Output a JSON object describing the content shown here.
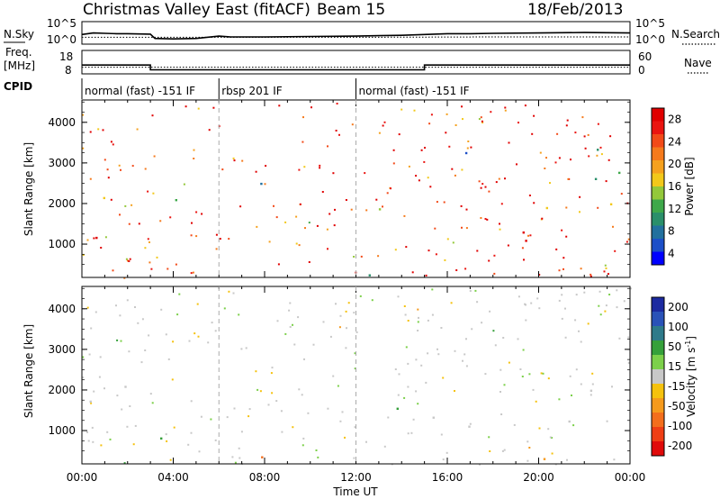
{
  "header": {
    "title": "Christmas Valley East (fitACF)",
    "beam": "Beam 15",
    "date": "18/Feb/2013"
  },
  "top_panel": {
    "left_label": "N.Sky",
    "left_ticks": [
      "10^5",
      "10^0"
    ],
    "right_ticks": [
      "10^5",
      "10^0"
    ],
    "right_label": "N.Search"
  },
  "freq_panel": {
    "left_label_1": "Freq.",
    "left_label_2": "[MHz]",
    "left_ticks": [
      18,
      8
    ],
    "right_ticks": [
      60,
      0
    ],
    "right_label": "Nave"
  },
  "cpid": {
    "label": "CPID",
    "segments": [
      {
        "label": "normal (fast) -151 IF",
        "start_hour": 0,
        "end_hour": 6
      },
      {
        "label": "rbsp 201 IF",
        "start_hour": 6,
        "end_hour": 12
      },
      {
        "label": "normal (fast) -151 IF",
        "start_hour": 12,
        "end_hour": 24
      }
    ]
  },
  "xaxis": {
    "label": "Time UT",
    "ticks": [
      "00:00",
      "04:00",
      "08:00",
      "12:00",
      "16:00",
      "20:00",
      "00:00"
    ]
  },
  "power_colorbar": {
    "label": "Power [dB]",
    "ticks": [
      4,
      8,
      12,
      16,
      20,
      24,
      28
    ],
    "colors": [
      "#0000ff",
      "#1c4fc8",
      "#22709e",
      "#2a8f6a",
      "#3ea84a",
      "#93c83a",
      "#f2c81a",
      "#f5a11e",
      "#f57a1c",
      "#f24a18",
      "#ea1410",
      "#e00000"
    ]
  },
  "velocity_colorbar": {
    "label": "Velocity [m s^-1]",
    "ticks": [
      200,
      100,
      50,
      15,
      -15,
      -50,
      -100,
      -200
    ],
    "colors": [
      "#1c2aa0",
      "#2a52b8",
      "#2e7a8a",
      "#35a03a",
      "#7cd04a",
      "#c8c8c8",
      "#f5c20e",
      "#f59a1c",
      "#f36e1c",
      "#ef3e14",
      "#e00a0a"
    ]
  },
  "chart_data": [
    {
      "type": "line",
      "title": "N.Sky / N.Search",
      "xlabel": "",
      "ylabel": "N.Sky",
      "xlim": [
        0,
        24
      ],
      "series": [
        {
          "name": "N.Sky",
          "x": [
            0,
            0.5,
            1,
            1.5,
            2,
            3,
            3.2,
            4,
            5,
            6,
            6.5,
            8,
            10,
            12,
            13,
            14,
            15,
            16,
            17,
            18,
            20,
            22,
            24
          ],
          "y": [
            2.2,
            2.6,
            2.5,
            2.4,
            2.4,
            2.3,
            1.2,
            1.1,
            1.2,
            1.8,
            1.6,
            1.6,
            1.7,
            1.8,
            1.9,
            2.0,
            2.2,
            2.4,
            2.4,
            2.5,
            2.6,
            2.7,
            2.6
          ]
        },
        {
          "name": "N.Search",
          "x": [
            0,
            6,
            12,
            18,
            24
          ],
          "y": [
            1.5,
            1.5,
            1.5,
            1.6,
            1.6
          ]
        }
      ]
    },
    {
      "type": "line",
      "title": "Freq / Nave",
      "xlim": [
        0,
        24
      ],
      "series": [
        {
          "name": "Freq.",
          "x": [
            0,
            3.0,
            3.0,
            15.0,
            15.0,
            24
          ],
          "y": [
            13.5,
            13.5,
            10.2,
            10.2,
            13.5,
            13.5
          ]
        },
        {
          "name": "Nave",
          "x": [
            0,
            24
          ],
          "y": [
            16,
            16
          ]
        }
      ]
    },
    {
      "type": "heatmap",
      "title": "Power",
      "xlabel": "Time UT",
      "ylabel": "Slant Range [km]",
      "xlim": [
        0,
        24
      ],
      "ylim": [
        180,
        4550
      ],
      "yticks": [
        1000,
        2000,
        3000,
        4000
      ],
      "colorbar": "Power [dB]",
      "regions": [
        {
          "t0": 0.0,
          "t1": 2.2,
          "r0": 1150,
          "r1": 1900,
          "level": 26
        },
        {
          "t0": 0.0,
          "t1": 2.2,
          "r0": 1900,
          "r1": 2600,
          "level": 14
        },
        {
          "t0": 1.4,
          "t1": 2.6,
          "r0": 2300,
          "r1": 3000,
          "level": 18
        },
        {
          "t0": 2.4,
          "t1": 3.8,
          "r0": 900,
          "r1": 1600,
          "level": 16
        },
        {
          "t0": 3.2,
          "t1": 4.6,
          "r0": 1400,
          "r1": 2400,
          "level": 10
        },
        {
          "t0": 7.2,
          "t1": 9.0,
          "r0": 1800,
          "r1": 2600,
          "level": 6
        },
        {
          "t0": 13.0,
          "t1": 15.0,
          "r0": 1100,
          "r1": 2600,
          "level": 20
        },
        {
          "t0": 13.2,
          "t1": 14.2,
          "r0": 2600,
          "r1": 3600,
          "level": 8
        },
        {
          "t0": 15.0,
          "t1": 24.0,
          "r0": 1100,
          "r1": 1700,
          "level": 27
        },
        {
          "t0": 15.0,
          "t1": 24.0,
          "r0": 1700,
          "r1": 2100,
          "level": 16
        },
        {
          "t0": 15.0,
          "t1": 24.0,
          "r0": 2500,
          "r1": 2900,
          "level": 9
        },
        {
          "t0": 16.0,
          "t1": 24.0,
          "r0": 3000,
          "r1": 3500,
          "level": 6
        },
        {
          "t0": 5.5,
          "t1": 13.0,
          "r0": 190,
          "r1": 620,
          "level": 6
        }
      ]
    },
    {
      "type": "heatmap",
      "title": "Velocity",
      "xlabel": "Time UT",
      "ylabel": "Slant Range [km]",
      "xlim": [
        0,
        24
      ],
      "ylim": [
        180,
        4550
      ],
      "yticks": [
        1000,
        2000,
        3000,
        4000
      ],
      "colorbar": "Velocity [m s^-1]",
      "regions": [
        {
          "t0": 0.0,
          "t1": 2.2,
          "r0": 1150,
          "r1": 2000,
          "level": 0
        },
        {
          "t0": 1.2,
          "t1": 2.6,
          "r0": 2000,
          "r1": 3200,
          "level": 0
        },
        {
          "t0": 2.6,
          "t1": 3.8,
          "r0": 1000,
          "r1": 1400,
          "level": 0
        },
        {
          "t0": 3.0,
          "t1": 4.8,
          "r0": 700,
          "r1": 1800,
          "level": 25
        },
        {
          "t0": 13.0,
          "t1": 15.0,
          "r0": 1300,
          "r1": 2600,
          "level": 25
        },
        {
          "t0": 15.0,
          "t1": 24.0,
          "r0": 1100,
          "r1": 2100,
          "level": 0
        },
        {
          "t0": 18.0,
          "t1": 24.0,
          "r0": 2600,
          "r1": 3100,
          "level": 0
        },
        {
          "t0": 5.5,
          "t1": 13.0,
          "r0": 190,
          "r1": 450,
          "level": -60
        },
        {
          "t0": 14.0,
          "t1": 24.0,
          "r0": 190,
          "r1": 400,
          "level": -40
        }
      ]
    }
  ]
}
